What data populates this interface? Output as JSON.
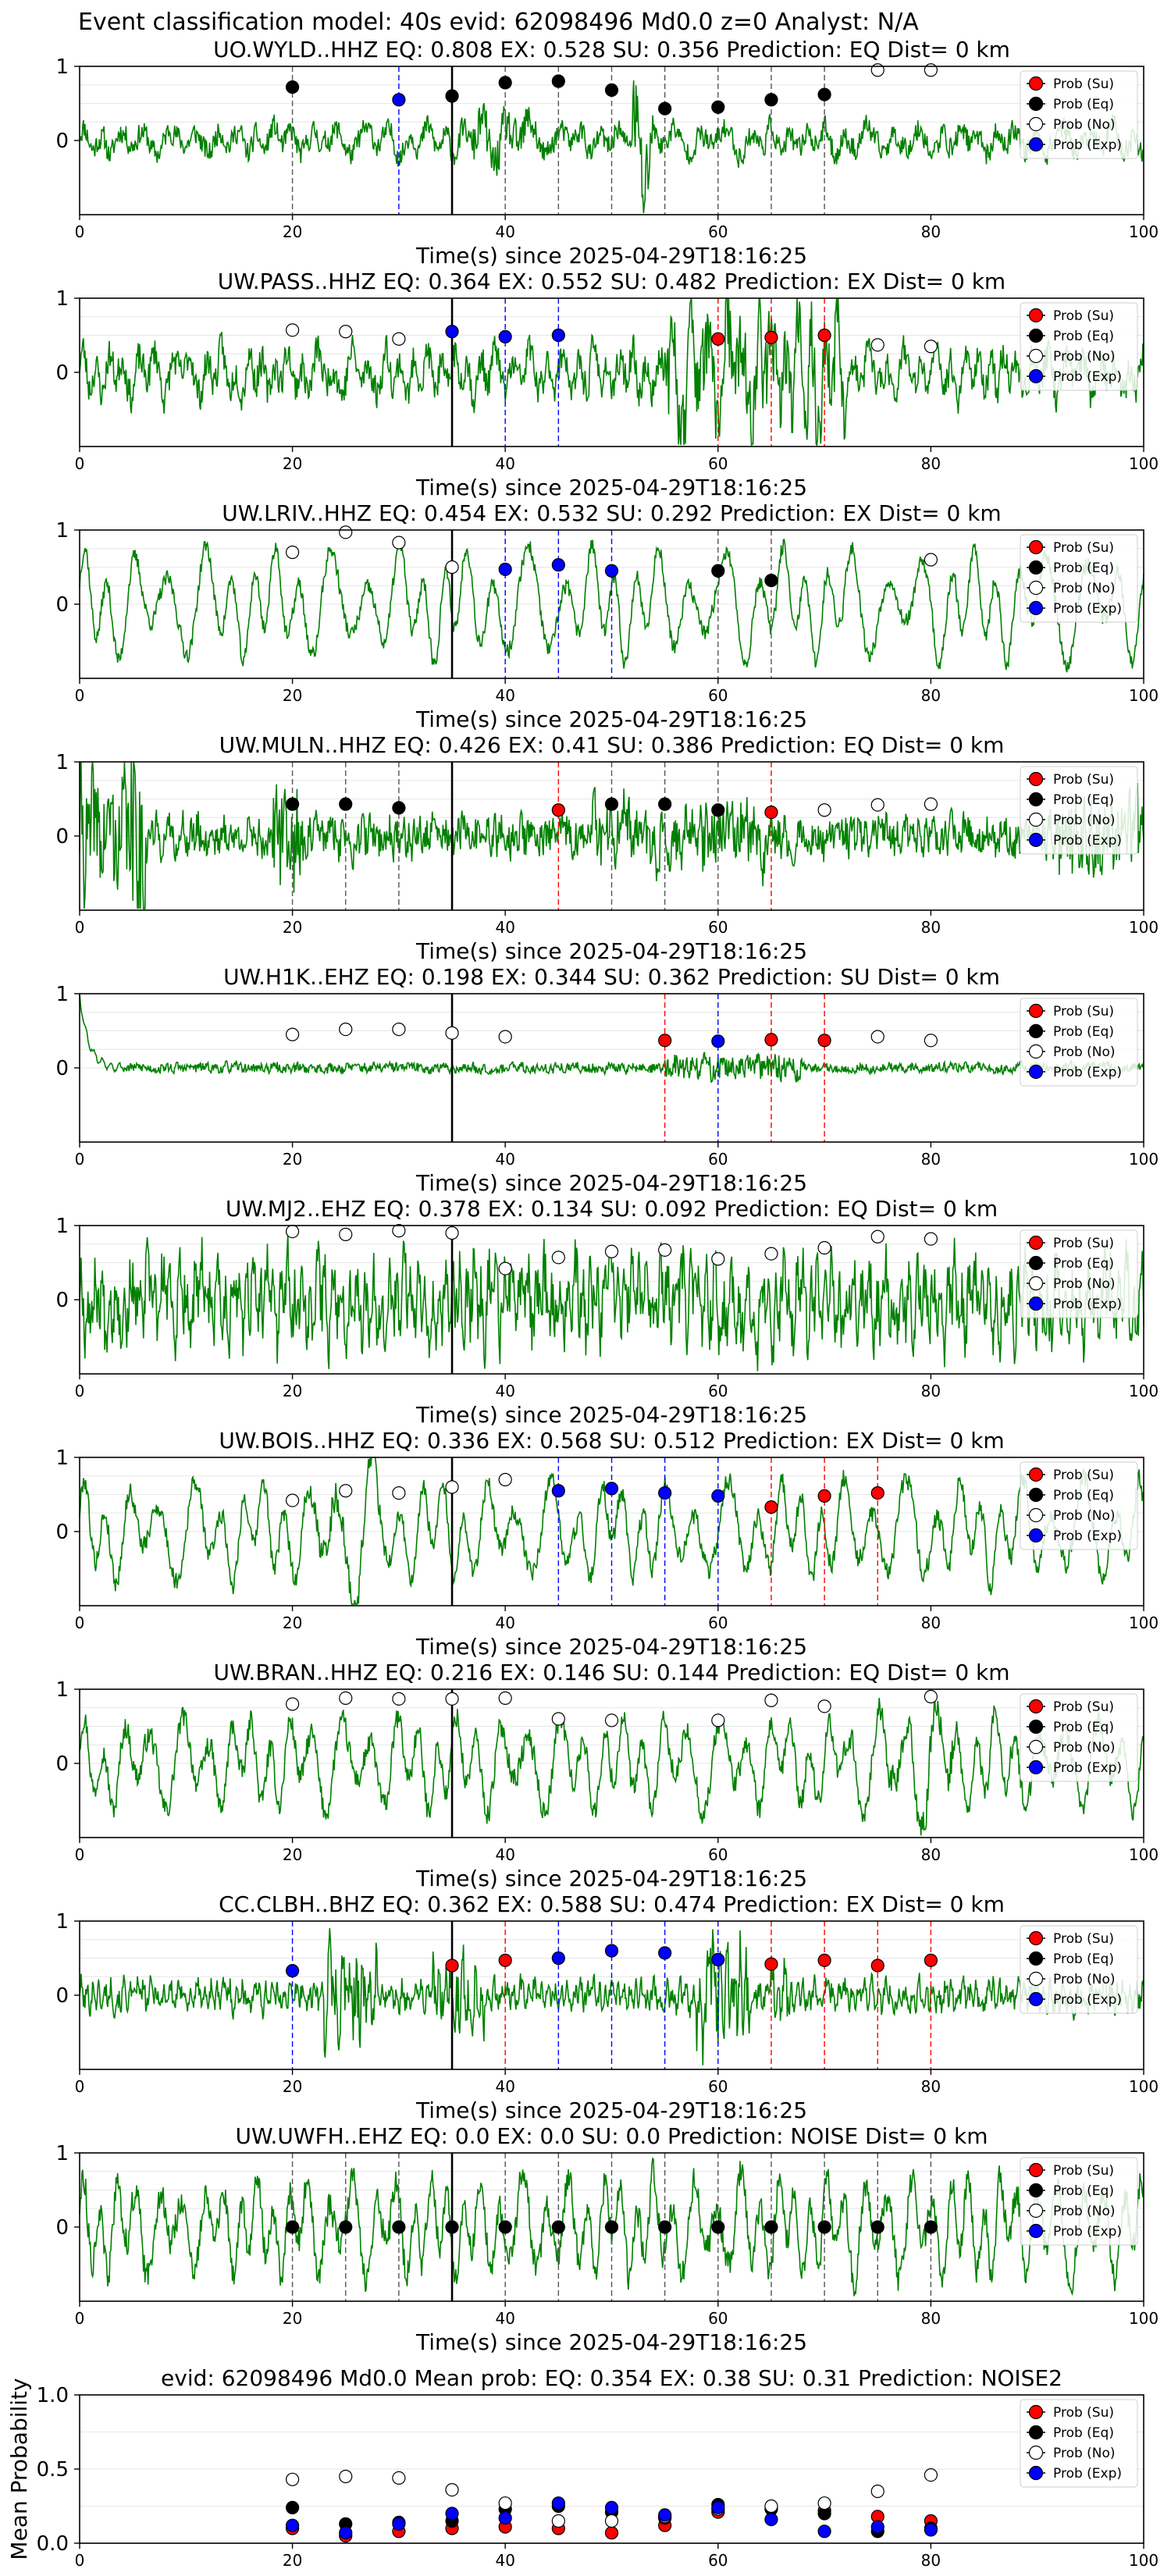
{
  "figure": {
    "suptitle": "Event classification model: 40s evid: 62098496 Md0.0 z=0 Analyst: N/A",
    "xlabel": "Time(s) since 2025-04-29T18:16:25",
    "legend": [
      "Prob (Su)",
      "Prob (Eq)",
      "Prob (No)",
      "Prob (Exp)"
    ],
    "colors": {
      "trace": "#008000",
      "su": "#ff0000",
      "eq": "#000000",
      "no": "#ffffff",
      "exp": "#0000ff",
      "onset": "#000000"
    },
    "onset_time": 35
  },
  "chart_data": [
    {
      "type": "line",
      "title": "UO.WYLD..HHZ   EQ: 0.808  EX: 0.528  SU: 0.356   Prediction: EQ    Dist= 0 km",
      "xlim": [
        0,
        100
      ],
      "ylim": [
        -1,
        1
      ],
      "xticks": [
        0,
        20,
        40,
        60,
        80,
        100
      ],
      "yticks": [
        0,
        1
      ],
      "waveform": {
        "amp": 0.12,
        "period": 2.0,
        "noise": 0.35,
        "seed": 11,
        "bursts": [
          [
            37,
            43,
            1.8
          ],
          [
            52,
            54,
            4.0
          ]
        ]
      },
      "points": [
        {
          "t": 20,
          "p": 0.72,
          "cls": "eq"
        },
        {
          "t": 30,
          "p": 0.55,
          "cls": "exp"
        },
        {
          "t": 35,
          "p": 0.6,
          "cls": "eq"
        },
        {
          "t": 40,
          "p": 0.78,
          "cls": "eq"
        },
        {
          "t": 45,
          "p": 0.8,
          "cls": "eq"
        },
        {
          "t": 50,
          "p": 0.68,
          "cls": "eq"
        },
        {
          "t": 55,
          "p": 0.43,
          "cls": "eq"
        },
        {
          "t": 60,
          "p": 0.45,
          "cls": "eq"
        },
        {
          "t": 65,
          "p": 0.55,
          "cls": "eq"
        },
        {
          "t": 70,
          "p": 0.62,
          "cls": "eq"
        },
        {
          "t": 75,
          "p": 0.95,
          "cls": "no"
        },
        {
          "t": 80,
          "p": 0.95,
          "cls": "no"
        }
      ]
    },
    {
      "type": "line",
      "title": "UW.PASS..HHZ   EQ: 0.364  EX: 0.552  SU: 0.482   Prediction: EX    Dist= 0 km",
      "xlim": [
        0,
        100
      ],
      "ylim": [
        -1,
        1
      ],
      "xticks": [
        0,
        20,
        40,
        60,
        80,
        100
      ],
      "yticks": [
        0,
        1
      ],
      "waveform": {
        "amp": 0.2,
        "period": 1.4,
        "noise": 0.5,
        "seed": 23,
        "bursts": [
          [
            55,
            72,
            2.5
          ]
        ]
      },
      "points": [
        {
          "t": 20,
          "p": 0.57,
          "cls": "no"
        },
        {
          "t": 25,
          "p": 0.55,
          "cls": "no"
        },
        {
          "t": 30,
          "p": 0.45,
          "cls": "no"
        },
        {
          "t": 35,
          "p": 0.55,
          "cls": "exp"
        },
        {
          "t": 40,
          "p": 0.48,
          "cls": "exp"
        },
        {
          "t": 45,
          "p": 0.5,
          "cls": "exp"
        },
        {
          "t": 60,
          "p": 0.45,
          "cls": "su"
        },
        {
          "t": 65,
          "p": 0.47,
          "cls": "su"
        },
        {
          "t": 70,
          "p": 0.5,
          "cls": "su"
        },
        {
          "t": 75,
          "p": 0.37,
          "cls": "no"
        },
        {
          "t": 80,
          "p": 0.35,
          "cls": "no"
        }
      ]
    },
    {
      "type": "line",
      "title": "UW.LRIV..HHZ   EQ: 0.454  EX: 0.532  SU: 0.292   Prediction: EX    Dist= 0 km",
      "xlim": [
        0,
        100
      ],
      "ylim": [
        -1,
        1
      ],
      "xticks": [
        0,
        20,
        40,
        60,
        80,
        100
      ],
      "yticks": [
        0,
        1
      ],
      "waveform": {
        "amp": 0.5,
        "period": 2.6,
        "noise": 0.25,
        "seed": 37,
        "bursts": []
      },
      "points": [
        {
          "t": 20,
          "p": 0.7,
          "cls": "no"
        },
        {
          "t": 25,
          "p": 0.97,
          "cls": "no"
        },
        {
          "t": 30,
          "p": 0.83,
          "cls": "no"
        },
        {
          "t": 35,
          "p": 0.5,
          "cls": "no"
        },
        {
          "t": 40,
          "p": 0.47,
          "cls": "exp"
        },
        {
          "t": 45,
          "p": 0.53,
          "cls": "exp"
        },
        {
          "t": 50,
          "p": 0.45,
          "cls": "exp"
        },
        {
          "t": 60,
          "p": 0.45,
          "cls": "eq"
        },
        {
          "t": 65,
          "p": 0.32,
          "cls": "eq"
        },
        {
          "t": 80,
          "p": 0.6,
          "cls": "no"
        }
      ]
    },
    {
      "type": "line",
      "title": "UW.MULN..HHZ   EQ: 0.426  EX: 0.41  SU: 0.386   Prediction: EQ    Dist= 0 km",
      "xlim": [
        0,
        100
      ],
      "ylim": [
        -1,
        1
      ],
      "xticks": [
        0,
        20,
        40,
        60,
        80,
        100
      ],
      "yticks": [
        0,
        1
      ],
      "waveform": {
        "amp": 0.08,
        "period": 0.6,
        "noise": 0.55,
        "seed": 41,
        "bursts": [
          [
            0,
            6,
            3.0
          ],
          [
            4.8,
            6.2,
            8.0
          ],
          [
            18,
            21,
            2.5
          ],
          [
            48,
            65,
            1.6
          ],
          [
            92,
            100,
            2.0
          ]
        ]
      },
      "points": [
        {
          "t": 20,
          "p": 0.43,
          "cls": "eq"
        },
        {
          "t": 25,
          "p": 0.43,
          "cls": "eq"
        },
        {
          "t": 30,
          "p": 0.38,
          "cls": "eq"
        },
        {
          "t": 45,
          "p": 0.35,
          "cls": "su"
        },
        {
          "t": 50,
          "p": 0.43,
          "cls": "eq"
        },
        {
          "t": 55,
          "p": 0.43,
          "cls": "eq"
        },
        {
          "t": 60,
          "p": 0.35,
          "cls": "eq"
        },
        {
          "t": 65,
          "p": 0.32,
          "cls": "su"
        },
        {
          "t": 70,
          "p": 0.35,
          "cls": "no"
        },
        {
          "t": 75,
          "p": 0.42,
          "cls": "no"
        },
        {
          "t": 80,
          "p": 0.43,
          "cls": "no"
        }
      ]
    },
    {
      "type": "line",
      "title": "UW.H1K..EHZ   EQ: 0.198  EX: 0.344  SU: 0.362   Prediction: SU    Dist= 0 km",
      "xlim": [
        0,
        100
      ],
      "ylim": [
        -1,
        1
      ],
      "xticks": [
        0,
        20,
        40,
        60,
        80,
        100
      ],
      "yticks": [
        0,
        1
      ],
      "waveform": {
        "amp": 0.01,
        "period": 0.5,
        "noise": 0.15,
        "seed": 53,
        "bursts": [
          [
            55,
            68,
            2.5
          ]
        ],
        "start_spike": true
      },
      "points": [
        {
          "t": 20,
          "p": 0.45,
          "cls": "no"
        },
        {
          "t": 25,
          "p": 0.52,
          "cls": "no"
        },
        {
          "t": 30,
          "p": 0.52,
          "cls": "no"
        },
        {
          "t": 35,
          "p": 0.47,
          "cls": "no"
        },
        {
          "t": 40,
          "p": 0.42,
          "cls": "no"
        },
        {
          "t": 55,
          "p": 0.37,
          "cls": "su"
        },
        {
          "t": 60,
          "p": 0.36,
          "cls": "exp"
        },
        {
          "t": 65,
          "p": 0.38,
          "cls": "su"
        },
        {
          "t": 70,
          "p": 0.37,
          "cls": "su"
        },
        {
          "t": 75,
          "p": 0.42,
          "cls": "no"
        },
        {
          "t": 80,
          "p": 0.37,
          "cls": "no"
        }
      ]
    },
    {
      "type": "line",
      "title": "UW.MJ2..EHZ   EQ: 0.378  EX: 0.134  SU: 0.092   Prediction: EQ    Dist= 0 km",
      "xlim": [
        0,
        100
      ],
      "ylim": [
        -1,
        1
      ],
      "xticks": [
        0,
        20,
        40,
        60,
        80,
        100
      ],
      "yticks": [
        0,
        1
      ],
      "waveform": {
        "amp": 0.3,
        "period": 0.7,
        "noise": 0.9,
        "seed": 67,
        "bursts": []
      },
      "points": [
        {
          "t": 20,
          "p": 0.92,
          "cls": "no"
        },
        {
          "t": 25,
          "p": 0.88,
          "cls": "no"
        },
        {
          "t": 30,
          "p": 0.93,
          "cls": "no"
        },
        {
          "t": 35,
          "p": 0.9,
          "cls": "no"
        },
        {
          "t": 40,
          "p": 0.42,
          "cls": "no"
        },
        {
          "t": 45,
          "p": 0.57,
          "cls": "no"
        },
        {
          "t": 50,
          "p": 0.65,
          "cls": "no"
        },
        {
          "t": 55,
          "p": 0.67,
          "cls": "no"
        },
        {
          "t": 60,
          "p": 0.55,
          "cls": "no"
        },
        {
          "t": 65,
          "p": 0.62,
          "cls": "no"
        },
        {
          "t": 70,
          "p": 0.7,
          "cls": "no"
        },
        {
          "t": 75,
          "p": 0.85,
          "cls": "no"
        },
        {
          "t": 80,
          "p": 0.82,
          "cls": "no"
        }
      ]
    },
    {
      "type": "line",
      "title": "UW.BOIS..HHZ   EQ: 0.336  EX: 0.568  SU: 0.512   Prediction: EX    Dist= 0 km",
      "xlim": [
        0,
        100
      ],
      "ylim": [
        -1,
        1
      ],
      "xticks": [
        0,
        20,
        40,
        60,
        80,
        100
      ],
      "yticks": [
        0,
        1
      ],
      "waveform": {
        "amp": 0.45,
        "period": 2.4,
        "noise": 0.3,
        "seed": 79,
        "bursts": [
          [
            22,
            28,
            1.6
          ]
        ]
      },
      "points": [
        {
          "t": 20,
          "p": 0.42,
          "cls": "no"
        },
        {
          "t": 25,
          "p": 0.55,
          "cls": "no"
        },
        {
          "t": 30,
          "p": 0.52,
          "cls": "no"
        },
        {
          "t": 35,
          "p": 0.6,
          "cls": "no"
        },
        {
          "t": 40,
          "p": 0.7,
          "cls": "no"
        },
        {
          "t": 45,
          "p": 0.55,
          "cls": "exp"
        },
        {
          "t": 50,
          "p": 0.58,
          "cls": "exp"
        },
        {
          "t": 55,
          "p": 0.52,
          "cls": "exp"
        },
        {
          "t": 60,
          "p": 0.48,
          "cls": "exp"
        },
        {
          "t": 65,
          "p": 0.33,
          "cls": "su"
        },
        {
          "t": 70,
          "p": 0.48,
          "cls": "su"
        },
        {
          "t": 75,
          "p": 0.52,
          "cls": "su"
        }
      ]
    },
    {
      "type": "line",
      "title": "UW.BRAN..HHZ   EQ: 0.216  EX: 0.146  SU: 0.144   Prediction: EQ    Dist= 0 km",
      "xlim": [
        0,
        100
      ],
      "ylim": [
        -1,
        1
      ],
      "xticks": [
        0,
        20,
        40,
        60,
        80,
        100
      ],
      "yticks": [
        0,
        1
      ],
      "waveform": {
        "amp": 0.42,
        "period": 2.2,
        "noise": 0.35,
        "seed": 97,
        "bursts": [
          [
            75,
            82,
            1.5
          ]
        ]
      },
      "points": [
        {
          "t": 20,
          "p": 0.8,
          "cls": "no"
        },
        {
          "t": 25,
          "p": 0.88,
          "cls": "no"
        },
        {
          "t": 30,
          "p": 0.87,
          "cls": "no"
        },
        {
          "t": 35,
          "p": 0.87,
          "cls": "no"
        },
        {
          "t": 40,
          "p": 0.88,
          "cls": "no"
        },
        {
          "t": 45,
          "p": 0.6,
          "cls": "no"
        },
        {
          "t": 50,
          "p": 0.58,
          "cls": "no"
        },
        {
          "t": 60,
          "p": 0.58,
          "cls": "no"
        },
        {
          "t": 65,
          "p": 0.85,
          "cls": "no"
        },
        {
          "t": 70,
          "p": 0.77,
          "cls": "no"
        },
        {
          "t": 80,
          "p": 0.9,
          "cls": "no"
        }
      ]
    },
    {
      "type": "line",
      "title": "CC.CLBH..BHZ   EQ: 0.362  EX: 0.588  SU: 0.474   Prediction: EX    Dist= 0 km",
      "xlim": [
        0,
        100
      ],
      "ylim": [
        -1,
        1
      ],
      "xticks": [
        0,
        20,
        40,
        60,
        80,
        100
      ],
      "yticks": [
        0,
        1
      ],
      "waveform": {
        "amp": 0.1,
        "period": 0.6,
        "noise": 0.35,
        "seed": 101,
        "bursts": [
          [
            23,
            28,
            3.2
          ],
          [
            33,
            38,
            2.2
          ],
          [
            58,
            63,
            3.6
          ],
          [
            65,
            67,
            1.8
          ]
        ]
      },
      "points": [
        {
          "t": 20,
          "p": 0.33,
          "cls": "exp"
        },
        {
          "t": 35,
          "p": 0.4,
          "cls": "su"
        },
        {
          "t": 40,
          "p": 0.47,
          "cls": "su"
        },
        {
          "t": 45,
          "p": 0.5,
          "cls": "exp"
        },
        {
          "t": 50,
          "p": 0.6,
          "cls": "exp"
        },
        {
          "t": 55,
          "p": 0.57,
          "cls": "exp"
        },
        {
          "t": 60,
          "p": 0.48,
          "cls": "exp"
        },
        {
          "t": 65,
          "p": 0.42,
          "cls": "su"
        },
        {
          "t": 70,
          "p": 0.47,
          "cls": "su"
        },
        {
          "t": 75,
          "p": 0.4,
          "cls": "su"
        },
        {
          "t": 80,
          "p": 0.47,
          "cls": "su"
        }
      ]
    },
    {
      "type": "line",
      "title": "UW.UWFH..EHZ   EQ: 0.0  EX: 0.0  SU: 0.0   Prediction: NOISE    Dist= 0 km",
      "xlim": [
        0,
        100
      ],
      "ylim": [
        -1,
        1
      ],
      "xticks": [
        0,
        20,
        40,
        60,
        80,
        100
      ],
      "yticks": [
        0,
        1
      ],
      "waveform": {
        "amp": 0.45,
        "period": 1.8,
        "noise": 0.45,
        "seed": 113,
        "bursts": []
      },
      "points": [
        {
          "t": 20,
          "p": 0.0,
          "cls": "eq"
        },
        {
          "t": 25,
          "p": 0.0,
          "cls": "eq"
        },
        {
          "t": 30,
          "p": 0.0,
          "cls": "eq"
        },
        {
          "t": 35,
          "p": 0.0,
          "cls": "eq"
        },
        {
          "t": 40,
          "p": 0.0,
          "cls": "eq"
        },
        {
          "t": 45,
          "p": 0.0,
          "cls": "eq"
        },
        {
          "t": 50,
          "p": 0.0,
          "cls": "eq"
        },
        {
          "t": 55,
          "p": 0.0,
          "cls": "eq"
        },
        {
          "t": 60,
          "p": 0.0,
          "cls": "eq"
        },
        {
          "t": 65,
          "p": 0.0,
          "cls": "eq"
        },
        {
          "t": 70,
          "p": 0.0,
          "cls": "eq"
        },
        {
          "t": 75,
          "p": 0.0,
          "cls": "eq"
        },
        {
          "t": 80,
          "p": 0.0,
          "cls": "eq"
        }
      ]
    },
    {
      "type": "scatter",
      "title": "evid: 62098496  Md0.0   Mean prob:   EQ: 0.354  EX: 0.38  SU: 0.31   Prediction: NOISE2",
      "ylabel": "Mean Probability",
      "xlim": [
        0,
        100
      ],
      "ylim": [
        0,
        1
      ],
      "xticks": [
        0,
        20,
        40,
        60,
        80,
        100
      ],
      "yticks": [
        0.0,
        0.5,
        1.0
      ],
      "x": [
        20,
        25,
        30,
        35,
        40,
        45,
        50,
        55,
        60,
        65,
        70,
        75,
        80
      ],
      "series": [
        {
          "name": "Prob (Su)",
          "cls": "su",
          "values": [
            0.1,
            0.05,
            0.08,
            0.1,
            0.11,
            0.1,
            0.07,
            0.12,
            0.21,
            0.24,
            0.22,
            0.18,
            0.15
          ]
        },
        {
          "name": "Prob (Eq)",
          "cls": "eq",
          "values": [
            0.24,
            0.13,
            0.14,
            0.15,
            0.23,
            0.25,
            0.21,
            0.17,
            0.26,
            0.23,
            0.2,
            0.08,
            0.1
          ]
        },
        {
          "name": "Prob (No)",
          "cls": "no",
          "values": [
            0.43,
            0.45,
            0.44,
            0.36,
            0.27,
            0.15,
            0.15,
            0.18,
            0.23,
            0.25,
            0.27,
            0.35,
            0.46
          ]
        },
        {
          "name": "Prob (Exp)",
          "cls": "exp",
          "values": [
            0.12,
            0.07,
            0.13,
            0.2,
            0.17,
            0.27,
            0.24,
            0.19,
            0.24,
            0.16,
            0.08,
            0.11,
            0.09
          ]
        }
      ]
    }
  ]
}
